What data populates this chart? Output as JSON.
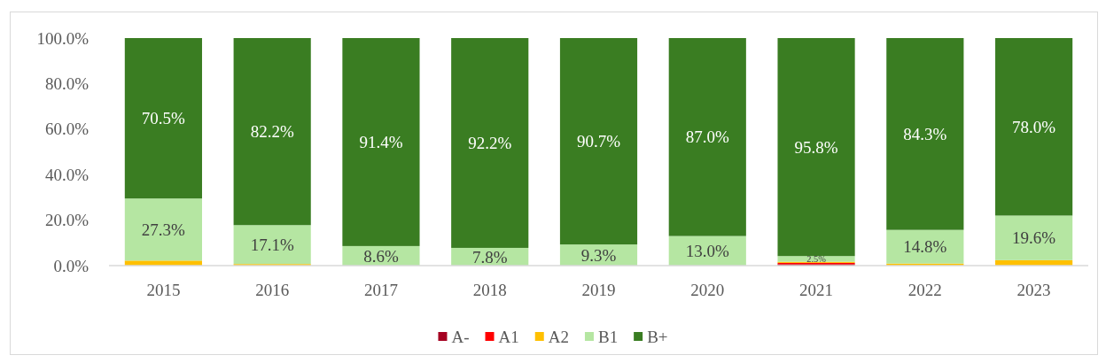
{
  "chart_data": {
    "type": "bar",
    "stacked": true,
    "legend": "bottom",
    "categories": [
      "2015",
      "2016",
      "2017",
      "2018",
      "2019",
      "2020",
      "2021",
      "2022",
      "2023"
    ],
    "ylim": [
      0,
      100
    ],
    "yticks": [
      {
        "value": 0,
        "label": "0.0%"
      },
      {
        "value": 20,
        "label": "20.0%"
      },
      {
        "value": 40,
        "label": "40.0%"
      },
      {
        "value": 60,
        "label": "60.0%"
      },
      {
        "value": 80,
        "label": "80.0%"
      },
      {
        "value": 100,
        "label": "100.0%"
      }
    ],
    "series": [
      {
        "name": "A-",
        "color": "#a50021",
        "values": [
          0,
          0,
          0,
          0,
          0,
          0,
          0.6,
          0,
          0
        ]
      },
      {
        "name": "A1",
        "color": "#ff0000",
        "values": [
          0,
          0,
          0,
          0,
          0,
          0,
          0.6,
          0,
          0
        ]
      },
      {
        "name": "A2",
        "color": "#ffc000",
        "values": [
          2.2,
          0.7,
          0,
          0,
          0,
          0,
          0.5,
          0.9,
          2.4
        ]
      },
      {
        "name": "B1",
        "color": "#b5e6a2",
        "values": [
          27.3,
          17.1,
          8.6,
          7.8,
          9.3,
          13.0,
          2.5,
          14.8,
          19.6
        ],
        "value_labels": [
          "27.3%",
          "17.1%",
          "8.6%",
          "7.8%",
          "9.3%",
          "13.0%",
          "2.5%",
          "14.8%",
          "19.6%"
        ]
      },
      {
        "name": "B+",
        "color": "#3a7d22",
        "values": [
          70.5,
          82.2,
          91.4,
          92.2,
          90.7,
          87.0,
          95.8,
          84.3,
          78.0
        ],
        "value_labels": [
          "70.5%",
          "82.2%",
          "91.4%",
          "92.2%",
          "90.7%",
          "87.0%",
          "95.8%",
          "84.3%",
          "78.0%"
        ]
      }
    ]
  }
}
